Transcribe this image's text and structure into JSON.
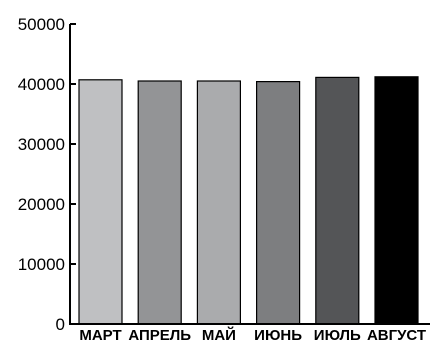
{
  "chart_data": {
    "type": "bar",
    "title": "",
    "xlabel": "",
    "ylabel": "",
    "categories": [
      "МАРТ",
      "АПРЕЛЬ",
      "МАЙ",
      "ИЮНЬ",
      "ИЮЛЬ",
      "АВГУСТ"
    ],
    "values": [
      40700,
      40500,
      40500,
      40400,
      41100,
      41200
    ],
    "bar_colors": [
      "#bfc0c2",
      "#939496",
      "#aaabad",
      "#7d7e80",
      "#545557",
      "#000000"
    ],
    "ylim": [
      0,
      50000
    ],
    "yticks": [
      0,
      10000,
      20000,
      30000,
      40000,
      50000
    ],
    "ytick_labels": [
      "0",
      "10000",
      "20000",
      "30000",
      "40000",
      "50000"
    ],
    "grid": false,
    "legend": "none"
  }
}
